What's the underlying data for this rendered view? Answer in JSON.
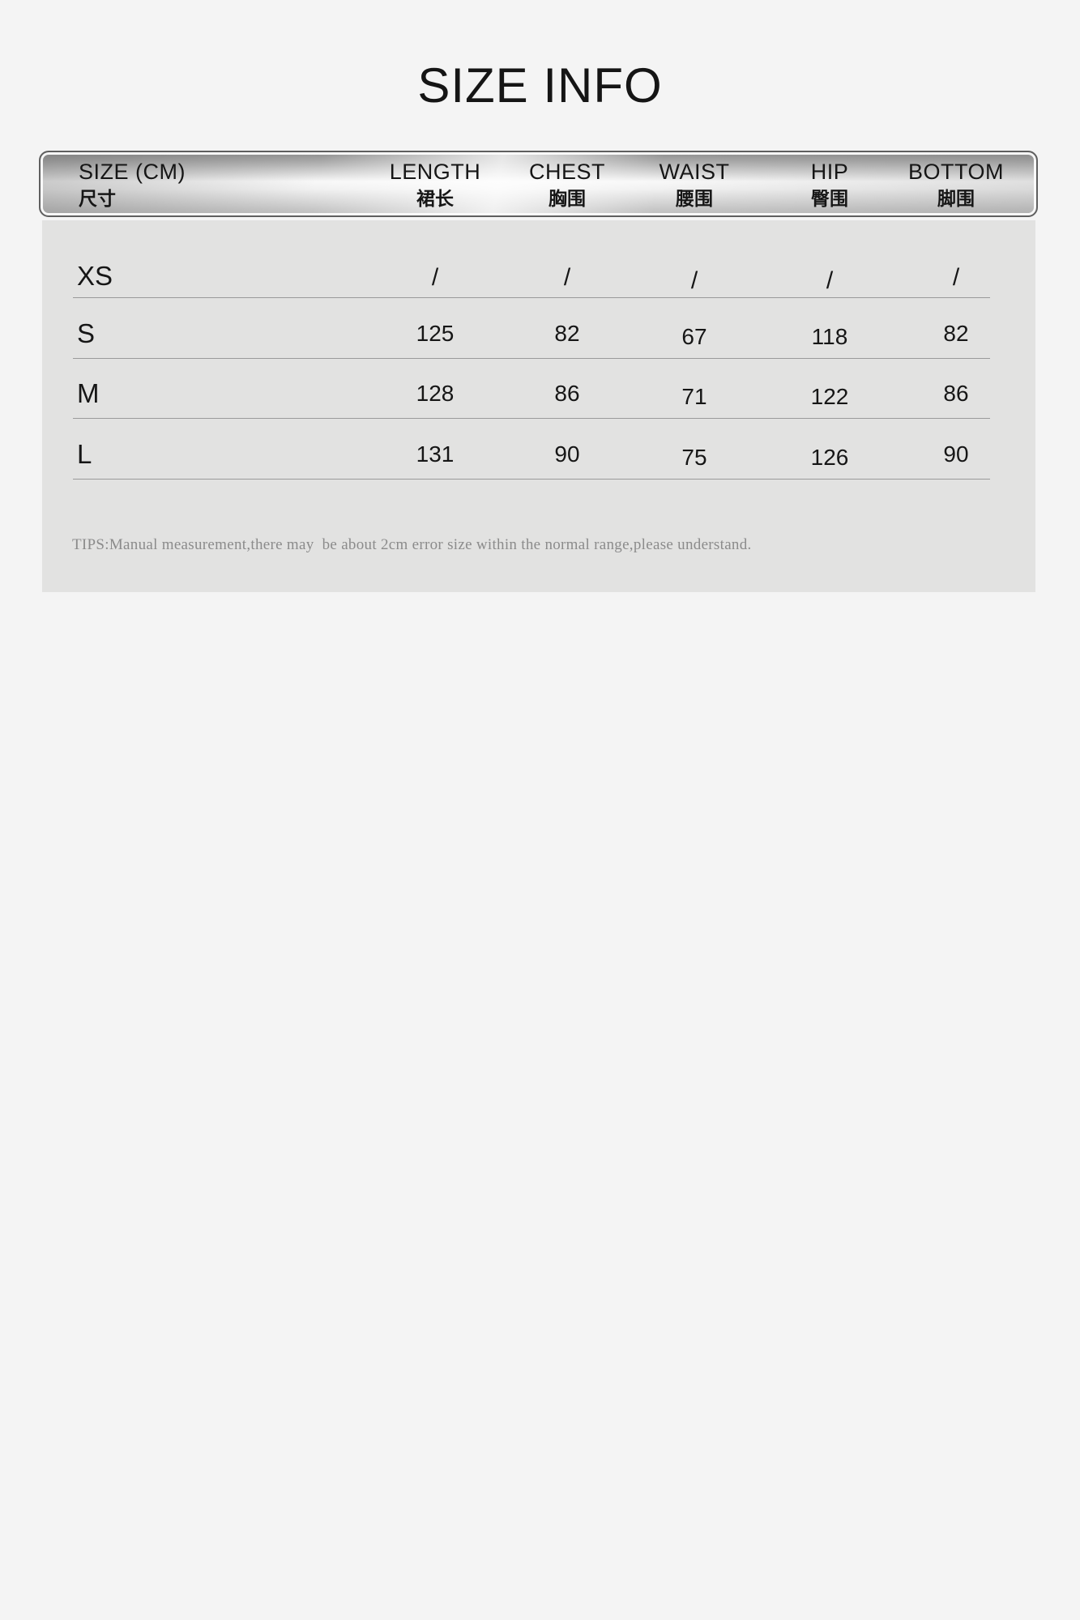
{
  "title": "SIZE INFO",
  "table": {
    "columns": [
      {
        "en": "SIZE (CM)",
        "zh": "尺寸"
      },
      {
        "en": "LENGTH",
        "zh": "裙长"
      },
      {
        "en": "CHEST",
        "zh": "胸围"
      },
      {
        "en": "WAIST",
        "zh": "腰围"
      },
      {
        "en": "HIP",
        "zh": "臀围"
      },
      {
        "en": "BOTTOM",
        "zh": "脚围"
      }
    ],
    "rows": [
      {
        "size": "XS",
        "values": [
          "/",
          "/",
          "/",
          "/",
          "/"
        ]
      },
      {
        "size": "S",
        "values": [
          "125",
          "82",
          "67",
          "118",
          "82"
        ]
      },
      {
        "size": "M",
        "values": [
          "128",
          "86",
          "71",
          "122",
          "86"
        ]
      },
      {
        "size": "L",
        "values": [
          "131",
          "90",
          "75",
          "126",
          "90"
        ]
      }
    ]
  },
  "tips": "TIPS:Manual measurement,there may  be about 2cm error size within the normal range,please understand.",
  "colors": {
    "page_background": "#f4f4f4",
    "panel_background": "#e2e2e1",
    "divider": "#9a9a9a",
    "text": "#161616",
    "tips_text": "#8b8b8b",
    "header_bar_frame": "#5f5f5f"
  }
}
